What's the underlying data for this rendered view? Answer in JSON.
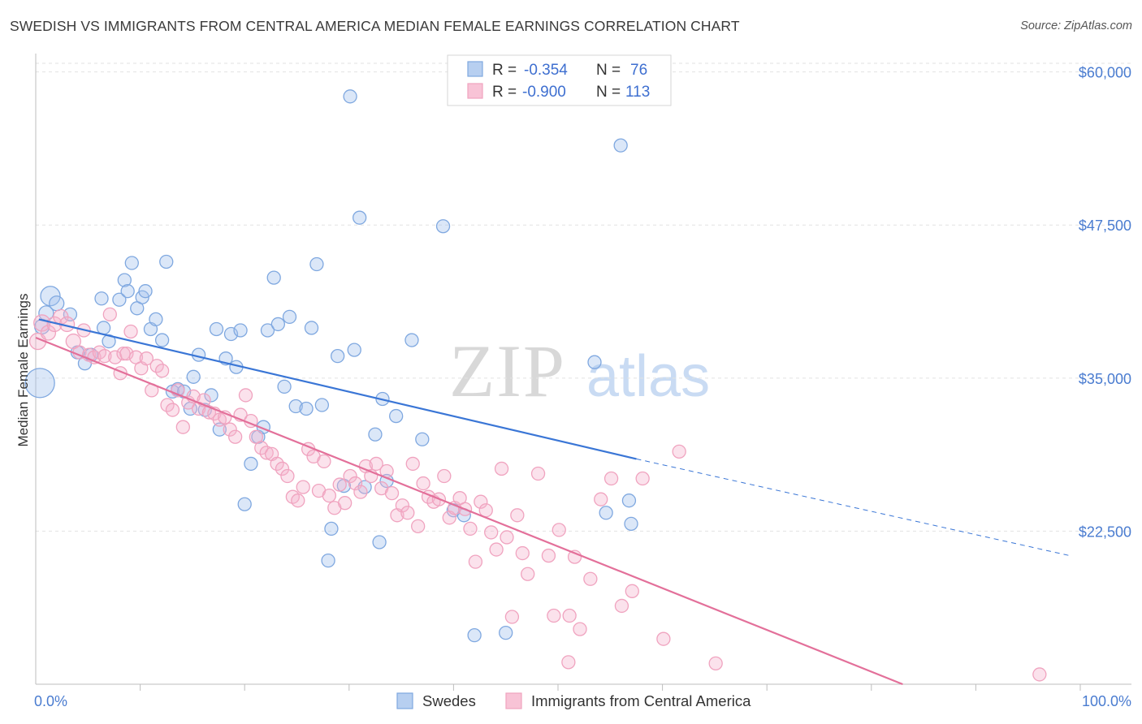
{
  "title": "SWEDISH VS IMMIGRANTS FROM CENTRAL AMERICA MEDIAN FEMALE EARNINGS CORRELATION CHART",
  "source": "Source: ZipAtlas.com",
  "watermark": {
    "zip": "ZIP",
    "atlas": "atlas"
  },
  "legend_top": [
    {
      "r_label": "R =",
      "r_value": "-0.354",
      "n_label": "N =",
      "n_value": "76"
    },
    {
      "r_label": "R =",
      "r_value": "-0.900",
      "n_label": "N =",
      "n_value": "113"
    }
  ],
  "chart_data": {
    "type": "scatter",
    "title": "SWEDISH VS IMMIGRANTS FROM CENTRAL AMERICA MEDIAN FEMALE EARNINGS CORRELATION CHART",
    "xlabel": "",
    "ylabel": "Median Female Earnings",
    "xlim": [
      0,
      100
    ],
    "ylim": [
      10000,
      61500
    ],
    "x_tick_labels": [
      "0.0%",
      "100.0%"
    ],
    "y_ticks": [
      22500,
      35000,
      47500,
      60000
    ],
    "y_tick_labels": [
      "$22,500",
      "$35,000",
      "$47,500",
      "$60,000"
    ],
    "grid": true,
    "legend_position": "bottom",
    "series": [
      {
        "name": "Swedes",
        "color": "#7fa8e0",
        "line_color": "#3a76d6",
        "trend": {
          "x0": 0.3,
          "y0": 39800,
          "x1": 57.5,
          "y1": 28400,
          "dash_x1": 99,
          "dash_y1": 20500
        },
        "points": [
          [
            1.4,
            41700,
            12
          ],
          [
            1.0,
            40300,
            9
          ],
          [
            0.6,
            39200,
            9
          ],
          [
            0.4,
            34600,
            18
          ],
          [
            2.0,
            41100,
            9
          ],
          [
            3.3,
            40200,
            8
          ],
          [
            4.0,
            37100,
            8
          ],
          [
            4.7,
            36200,
            8
          ],
          [
            5.3,
            36900,
            8
          ],
          [
            6.3,
            41500,
            8
          ],
          [
            6.5,
            39100,
            8
          ],
          [
            7.0,
            38000,
            8
          ],
          [
            8.0,
            41400,
            8
          ],
          [
            8.5,
            43000,
            8
          ],
          [
            8.8,
            42100,
            8
          ],
          [
            9.2,
            44400,
            8
          ],
          [
            9.7,
            40700,
            8
          ],
          [
            10.2,
            41600,
            8
          ],
          [
            10.5,
            42100,
            8
          ],
          [
            11.0,
            39000,
            8
          ],
          [
            11.5,
            39800,
            8
          ],
          [
            12.1,
            38100,
            8
          ],
          [
            12.5,
            44500,
            8
          ],
          [
            13.1,
            33900,
            8
          ],
          [
            13.6,
            34100,
            8
          ],
          [
            14.2,
            33900,
            8
          ],
          [
            14.8,
            32500,
            8
          ],
          [
            15.1,
            35100,
            8
          ],
          [
            15.6,
            36900,
            8
          ],
          [
            16.2,
            32400,
            8
          ],
          [
            16.8,
            33600,
            8
          ],
          [
            17.3,
            39000,
            8
          ],
          [
            17.6,
            30800,
            8
          ],
          [
            18.2,
            36600,
            8
          ],
          [
            18.7,
            38600,
            8
          ],
          [
            19.2,
            35900,
            8
          ],
          [
            19.6,
            38900,
            8
          ],
          [
            20.6,
            28000,
            8
          ],
          [
            21.3,
            30200,
            8
          ],
          [
            21.8,
            31000,
            8
          ],
          [
            22.2,
            38900,
            8
          ],
          [
            22.8,
            43200,
            8
          ],
          [
            23.2,
            39400,
            8
          ],
          [
            23.8,
            34300,
            8
          ],
          [
            24.3,
            40000,
            8
          ],
          [
            24.9,
            32700,
            8
          ],
          [
            25.9,
            32500,
            8
          ],
          [
            26.4,
            39100,
            8
          ],
          [
            26.9,
            44300,
            8
          ],
          [
            27.4,
            32800,
            8
          ],
          [
            28.0,
            20100,
            8
          ],
          [
            28.3,
            22700,
            8
          ],
          [
            28.9,
            36800,
            8
          ],
          [
            29.5,
            26200,
            8
          ],
          [
            30.1,
            58000,
            8
          ],
          [
            30.5,
            37300,
            8
          ],
          [
            31.0,
            48100,
            8
          ],
          [
            31.5,
            26100,
            8
          ],
          [
            32.5,
            30400,
            8
          ],
          [
            32.9,
            21600,
            8
          ],
          [
            33.2,
            33300,
            8
          ],
          [
            33.6,
            26600,
            8
          ],
          [
            34.5,
            31900,
            8
          ],
          [
            36.0,
            38100,
            8
          ],
          [
            37.0,
            30000,
            8
          ],
          [
            39.0,
            47400,
            8
          ],
          [
            40.0,
            24200,
            8
          ],
          [
            41.0,
            23800,
            8
          ],
          [
            42.0,
            14000,
            8
          ],
          [
            45.0,
            14200,
            8
          ],
          [
            53.5,
            36300,
            8
          ],
          [
            54.6,
            24000,
            8
          ],
          [
            57.0,
            23100,
            8
          ],
          [
            56.0,
            54000,
            8
          ],
          [
            56.8,
            25000,
            8
          ],
          [
            20.0,
            24700,
            8
          ]
        ]
      },
      {
        "name": "Immigrants from Central America",
        "color": "#f0a3bf",
        "line_color": "#e3709a",
        "trend": {
          "x0": 0.0,
          "y0": 38300,
          "x1": 83,
          "y1": 10000
        },
        "points": [
          [
            0.2,
            38000,
            10
          ],
          [
            0.6,
            39500,
            10
          ],
          [
            1.2,
            38700,
            9
          ],
          [
            1.8,
            39400,
            9
          ],
          [
            2.4,
            40000,
            9
          ],
          [
            3.0,
            39400,
            9
          ],
          [
            3.6,
            38000,
            9
          ],
          [
            4.2,
            37100,
            8
          ],
          [
            4.6,
            38900,
            8
          ],
          [
            5.1,
            36900,
            8
          ],
          [
            5.6,
            36700,
            8
          ],
          [
            6.1,
            37100,
            8
          ],
          [
            6.6,
            36800,
            8
          ],
          [
            7.1,
            40200,
            8
          ],
          [
            7.6,
            36700,
            8
          ],
          [
            8.1,
            35400,
            8
          ],
          [
            8.4,
            37000,
            8
          ],
          [
            8.7,
            37000,
            8
          ],
          [
            9.1,
            38800,
            8
          ],
          [
            9.6,
            36700,
            8
          ],
          [
            10.1,
            35800,
            8
          ],
          [
            10.6,
            36600,
            8
          ],
          [
            11.1,
            34000,
            8
          ],
          [
            11.6,
            36000,
            8
          ],
          [
            12.1,
            35600,
            8
          ],
          [
            12.6,
            32800,
            8
          ],
          [
            13.1,
            32400,
            8
          ],
          [
            13.6,
            34000,
            8
          ],
          [
            14.1,
            31000,
            8
          ],
          [
            14.6,
            33000,
            8
          ],
          [
            15.1,
            33500,
            8
          ],
          [
            15.6,
            32500,
            8
          ],
          [
            16.1,
            33200,
            8
          ],
          [
            16.6,
            32200,
            8
          ],
          [
            17.1,
            32100,
            8
          ],
          [
            17.6,
            31600,
            8
          ],
          [
            18.1,
            31800,
            8
          ],
          [
            18.6,
            30800,
            8
          ],
          [
            19.1,
            30200,
            8
          ],
          [
            19.6,
            32000,
            8
          ],
          [
            20.1,
            33600,
            8
          ],
          [
            20.6,
            31500,
            8
          ],
          [
            21.1,
            30200,
            8
          ],
          [
            21.6,
            29300,
            8
          ],
          [
            22.1,
            28900,
            8
          ],
          [
            22.6,
            28800,
            8
          ],
          [
            23.1,
            28000,
            8
          ],
          [
            23.6,
            27600,
            8
          ],
          [
            24.1,
            27000,
            8
          ],
          [
            24.6,
            25300,
            8
          ],
          [
            25.1,
            25000,
            8
          ],
          [
            25.6,
            26100,
            8
          ],
          [
            26.1,
            29200,
            8
          ],
          [
            26.6,
            28600,
            8
          ],
          [
            27.1,
            25800,
            8
          ],
          [
            27.6,
            28200,
            8
          ],
          [
            28.1,
            25400,
            8
          ],
          [
            28.6,
            24400,
            8
          ],
          [
            29.1,
            26300,
            8
          ],
          [
            29.6,
            24800,
            8
          ],
          [
            30.1,
            27000,
            8
          ],
          [
            30.6,
            26400,
            8
          ],
          [
            31.1,
            25700,
            8
          ],
          [
            31.6,
            27800,
            8
          ],
          [
            32.1,
            27000,
            8
          ],
          [
            32.6,
            28000,
            8
          ],
          [
            33.1,
            26000,
            8
          ],
          [
            33.6,
            27400,
            8
          ],
          [
            34.1,
            25600,
            8
          ],
          [
            34.6,
            23800,
            8
          ],
          [
            35.1,
            24600,
            8
          ],
          [
            35.6,
            24000,
            8
          ],
          [
            36.1,
            28000,
            8
          ],
          [
            36.6,
            22900,
            8
          ],
          [
            37.1,
            26400,
            8
          ],
          [
            37.6,
            25300,
            8
          ],
          [
            38.1,
            24900,
            8
          ],
          [
            38.6,
            25100,
            8
          ],
          [
            39.1,
            27000,
            8
          ],
          [
            39.6,
            23600,
            8
          ],
          [
            40.1,
            24400,
            8
          ],
          [
            40.6,
            25200,
            8
          ],
          [
            41.1,
            24300,
            8
          ],
          [
            41.6,
            22700,
            8
          ],
          [
            42.1,
            20000,
            8
          ],
          [
            42.6,
            24900,
            8
          ],
          [
            43.1,
            24200,
            8
          ],
          [
            43.6,
            22400,
            8
          ],
          [
            44.1,
            21000,
            8
          ],
          [
            44.6,
            27600,
            8
          ],
          [
            45.1,
            22000,
            8
          ],
          [
            46.1,
            23800,
            8
          ],
          [
            46.6,
            20700,
            8
          ],
          [
            47.1,
            19000,
            8
          ],
          [
            48.1,
            27200,
            8
          ],
          [
            49.1,
            20500,
            8
          ],
          [
            50.1,
            22600,
            8
          ],
          [
            51.1,
            15600,
            8
          ],
          [
            51.6,
            20400,
            8
          ],
          [
            52.1,
            14500,
            8
          ],
          [
            53.1,
            18600,
            8
          ],
          [
            54.1,
            25100,
            8
          ],
          [
            55.1,
            26800,
            8
          ],
          [
            56.1,
            16400,
            8
          ],
          [
            57.1,
            17600,
            8
          ],
          [
            58.1,
            26800,
            8
          ],
          [
            60.1,
            13700,
            8
          ],
          [
            61.6,
            29000,
            8
          ],
          [
            65.1,
            11700,
            8
          ],
          [
            96.1,
            10800,
            8
          ],
          [
            45.6,
            15500,
            8
          ],
          [
            49.6,
            15600,
            8
          ],
          [
            51.0,
            11800,
            8
          ]
        ]
      }
    ]
  }
}
